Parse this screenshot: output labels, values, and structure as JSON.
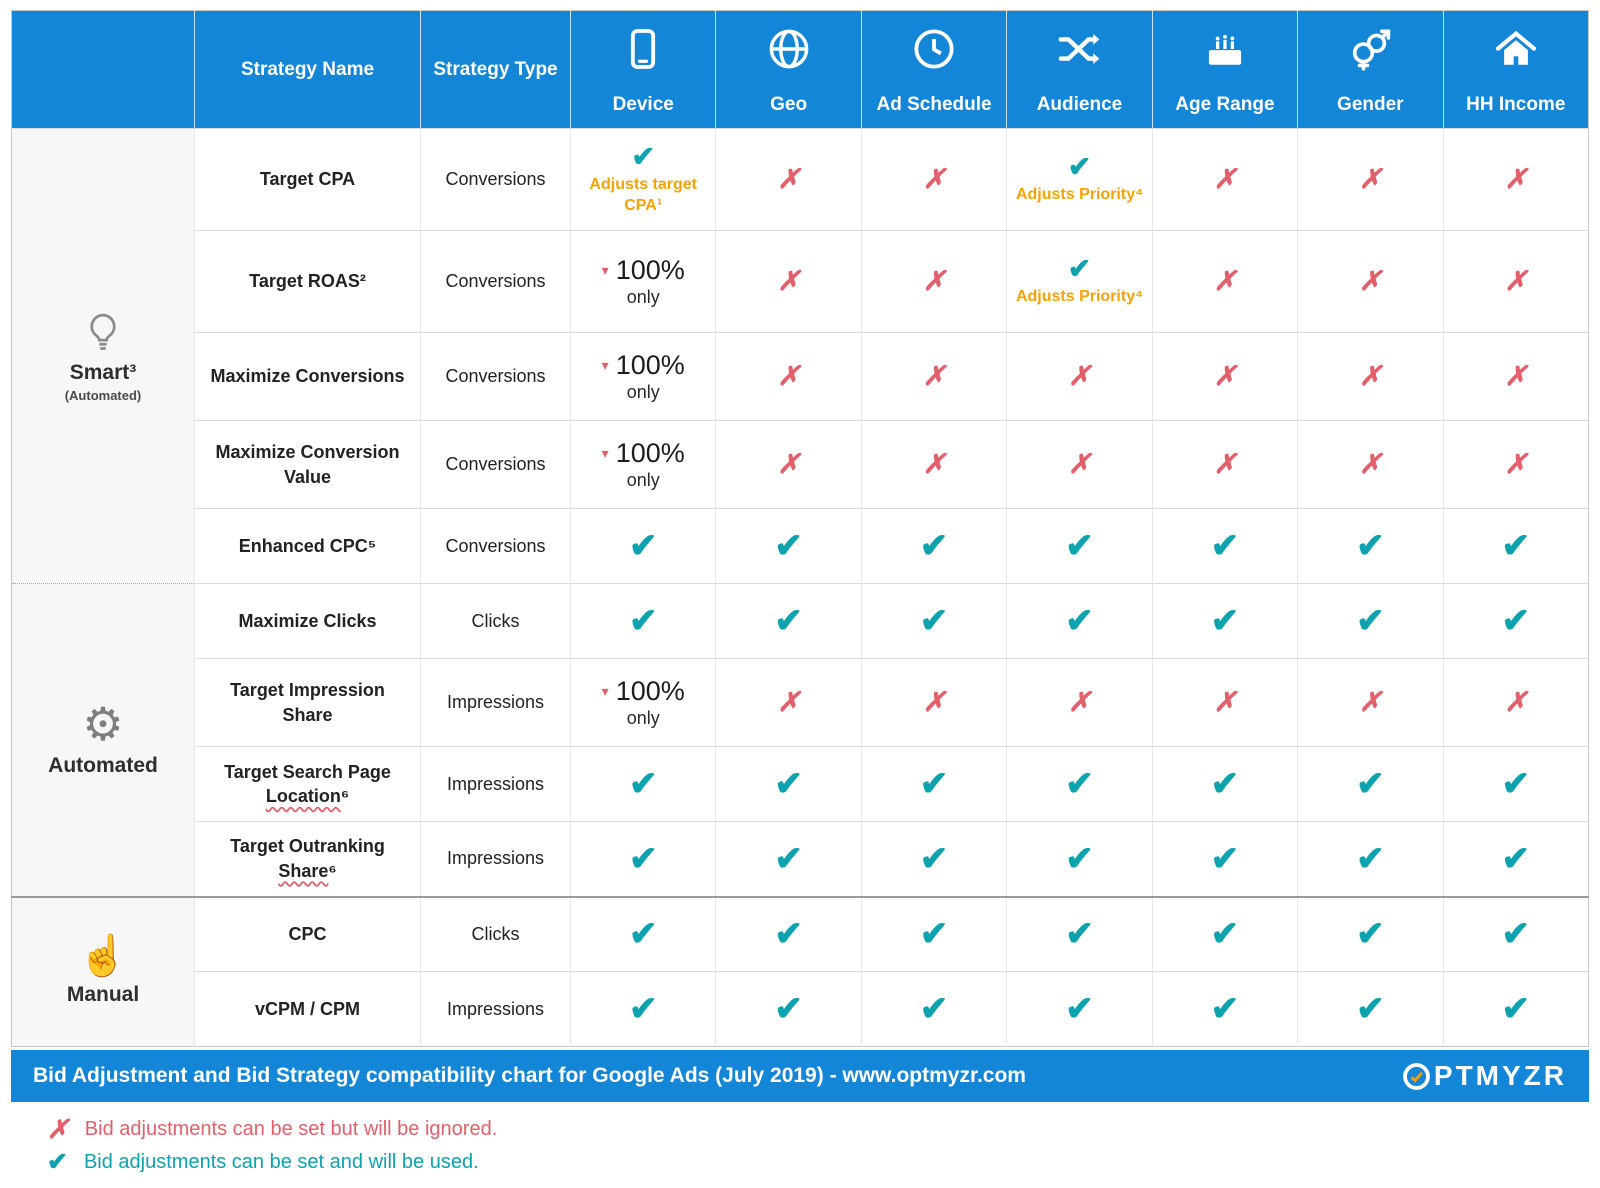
{
  "colors": {
    "header_blue": "#1486d8",
    "check_teal": "#0da3ae",
    "cross_red": "#e2606b",
    "note_orange": "#f5a300",
    "group_bg": "#f7f7f8"
  },
  "header": {
    "columns": [
      {
        "label": "Strategy Name"
      },
      {
        "label": "Strategy Type"
      },
      {
        "label": "Device",
        "icon": "device-icon"
      },
      {
        "label": "Geo",
        "icon": "geo-icon"
      },
      {
        "label": "Ad Schedule",
        "icon": "ad-schedule-icon"
      },
      {
        "label": "Audience",
        "icon": "audience-icon"
      },
      {
        "label": "Age Range",
        "icon": "age-range-icon"
      },
      {
        "label": "Gender",
        "icon": "gender-icon"
      },
      {
        "label": "HH Income",
        "icon": "hh-income-icon"
      }
    ]
  },
  "chart_data": {
    "type": "table",
    "title": "Bid Adjustment and Bid Strategy compatibility chart for Google Ads (July 2019)",
    "columns": [
      "Strategy Name",
      "Strategy Type",
      "Device",
      "Geo",
      "Ad Schedule",
      "Audience",
      "Age Range",
      "Gender",
      "HH Income"
    ],
    "groups": [
      {
        "name": "Smart³",
        "subtitle": "(Automated)",
        "icon": "lightbulb-icon",
        "rows": [
          {
            "name": "Target CPA",
            "strategy_type": "Conversions",
            "cells": [
              "✓ Adjusts target CPA¹",
              "✗",
              "✗",
              "✓ Adjusts Priority⁴",
              "✗",
              "✗",
              "✗"
            ]
          },
          {
            "name": "Target ROAS²",
            "strategy_type": "Conversions",
            "cells": [
              "100% only",
              "✗",
              "✗",
              "✓ Adjusts Priority⁴",
              "✗",
              "✗",
              "✗"
            ]
          },
          {
            "name": "Maximize Conversions",
            "strategy_type": "Conversions",
            "cells": [
              "100% only",
              "✗",
              "✗",
              "✗",
              "✗",
              "✗",
              "✗"
            ]
          },
          {
            "name": "Maximize Conversion Value",
            "strategy_type": "Conversions",
            "cells": [
              "100% only",
              "✗",
              "✗",
              "✗",
              "✗",
              "✗",
              "✗"
            ]
          },
          {
            "name": "Enhanced CPC⁵",
            "strategy_type": "Conversions",
            "cells": [
              "✓",
              "✓",
              "✓",
              "✓",
              "✓",
              "✓",
              "✓"
            ]
          }
        ]
      },
      {
        "name": "Automated",
        "icon": "gear-icon",
        "rows": [
          {
            "name": "Maximize Clicks",
            "strategy_type": "Clicks",
            "cells": [
              "✓",
              "✓",
              "✓",
              "✓",
              "✓",
              "✓",
              "✓"
            ]
          },
          {
            "name": "Target Impression Share",
            "strategy_type": "Impressions",
            "cells": [
              "100% only",
              "✗",
              "✗",
              "✗",
              "✗",
              "✗",
              "✗"
            ]
          },
          {
            "name": "Target Search Page Location⁶",
            "strategy_type": "Impressions",
            "squiggle": "Location",
            "cells": [
              "✓",
              "✓",
              "✓",
              "✓",
              "✓",
              "✓",
              "✓"
            ]
          },
          {
            "name": "Target Outranking Share⁶",
            "strategy_type": "Impressions",
            "squiggle": "Share",
            "cells": [
              "✓",
              "✓",
              "✓",
              "✓",
              "✓",
              "✓",
              "✓"
            ]
          }
        ]
      },
      {
        "name": "Manual",
        "icon": "hand-icon",
        "rows": [
          {
            "name": "CPC",
            "strategy_type": "Clicks",
            "cells": [
              "✓",
              "✓",
              "✓",
              "✓",
              "✓",
              "✓",
              "✓"
            ]
          },
          {
            "name": "vCPM / CPM",
            "strategy_type": "Impressions",
            "cells": [
              "✓",
              "✓",
              "✓",
              "✓",
              "✓",
              "✓",
              "✓"
            ]
          }
        ]
      }
    ]
  },
  "footer": {
    "text": "Bid Adjustment and Bid Strategy compatibility chart for Google Ads (July 2019) - www.optmyzr.com",
    "logo": "OPTMYZR"
  },
  "legend": {
    "items": [
      {
        "symbol": "✗",
        "text": "Bid adjustments can be set but will be ignored."
      },
      {
        "symbol": "✓",
        "text": "Bid adjustments can be set and will be used."
      }
    ]
  }
}
